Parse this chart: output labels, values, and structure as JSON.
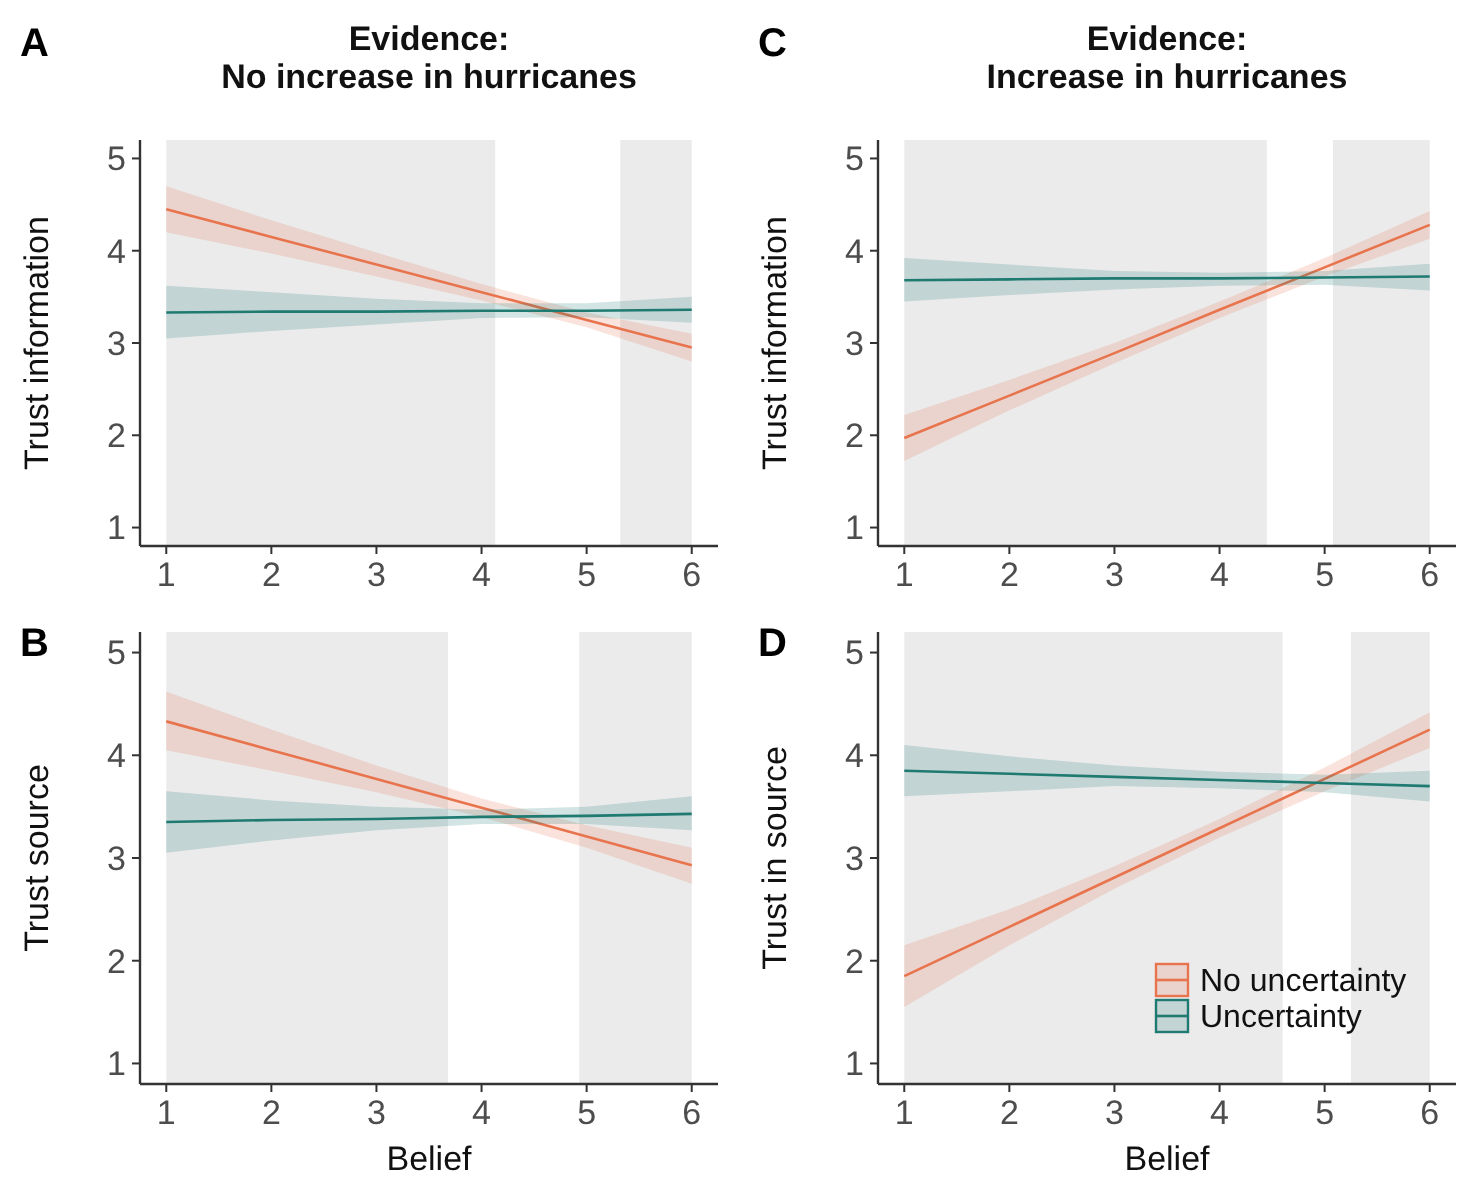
{
  "chart_data": [
    {
      "type": "line",
      "title": "Evidence:\nNo increase in hurricanes",
      "ylabel": "Trust information",
      "annotations": [
        "A"
      ],
      "x": [
        1,
        2,
        3,
        4,
        5,
        6
      ],
      "xlim": [
        0.75,
        6.25
      ],
      "ylim": [
        0.8,
        5.2
      ],
      "xticks": [
        1,
        2,
        3,
        4,
        5,
        6
      ],
      "yticks": [
        1,
        2,
        3,
        4,
        5
      ],
      "grid": false,
      "marker": "none",
      "line_style": "solid",
      "bands": [
        {
          "axis": "x",
          "from": 1,
          "to": 4.13,
          "color": "#ebebeb"
        },
        {
          "axis": "x",
          "from": 5.32,
          "to": 6,
          "color": "#ebebeb"
        }
      ],
      "series": [
        {
          "color": "#e8744e",
          "values": [
            4.45,
            4.15,
            3.85,
            3.55,
            3.25,
            2.95
          ],
          "lower": [
            4.2,
            3.97,
            3.72,
            3.46,
            3.17,
            2.8
          ],
          "upper": [
            4.7,
            4.33,
            3.98,
            3.64,
            3.33,
            3.1
          ]
        },
        {
          "color": "#1f7a72",
          "values": [
            3.33,
            3.34,
            3.34,
            3.35,
            3.35,
            3.36
          ],
          "lower": [
            3.05,
            3.13,
            3.2,
            3.27,
            3.28,
            3.22
          ],
          "upper": [
            3.62,
            3.55,
            3.48,
            3.43,
            3.43,
            3.5
          ]
        }
      ]
    },
    {
      "type": "line",
      "title": "Evidence:\nIncrease in hurricanes",
      "ylabel": "Trust information",
      "annotations": [
        "C"
      ],
      "x": [
        1,
        2,
        3,
        4,
        5,
        6
      ],
      "xlim": [
        0.75,
        6.25
      ],
      "ylim": [
        0.8,
        5.2
      ],
      "xticks": [
        1,
        2,
        3,
        4,
        5,
        6
      ],
      "yticks": [
        1,
        2,
        3,
        4,
        5
      ],
      "grid": false,
      "marker": "none",
      "line_style": "solid",
      "bands": [
        {
          "axis": "x",
          "from": 1,
          "to": 4.45,
          "color": "#ebebeb"
        },
        {
          "axis": "x",
          "from": 5.08,
          "to": 6,
          "color": "#ebebeb"
        }
      ],
      "series": [
        {
          "color": "#e8744e",
          "values": [
            1.97,
            2.43,
            2.89,
            3.36,
            3.82,
            4.28
          ],
          "lower": [
            1.72,
            2.27,
            2.78,
            3.27,
            3.72,
            4.13
          ],
          "upper": [
            2.22,
            2.6,
            3.0,
            3.45,
            3.92,
            4.43
          ]
        },
        {
          "color": "#1f7a72",
          "values": [
            3.68,
            3.69,
            3.7,
            3.7,
            3.71,
            3.72
          ],
          "lower": [
            3.45,
            3.52,
            3.58,
            3.62,
            3.63,
            3.57
          ],
          "upper": [
            3.92,
            3.85,
            3.78,
            3.76,
            3.78,
            3.86
          ]
        }
      ]
    },
    {
      "type": "line",
      "xlabel": "Belief",
      "ylabel": "Trust source",
      "annotations": [
        "B"
      ],
      "x": [
        1,
        2,
        3,
        4,
        5,
        6
      ],
      "xlim": [
        0.75,
        6.25
      ],
      "ylim": [
        0.8,
        5.2
      ],
      "xticks": [
        1,
        2,
        3,
        4,
        5,
        6
      ],
      "yticks": [
        1,
        2,
        3,
        4,
        5
      ],
      "grid": false,
      "marker": "none",
      "line_style": "solid",
      "bands": [
        {
          "axis": "x",
          "from": 1,
          "to": 3.68,
          "color": "#ebebeb"
        },
        {
          "axis": "x",
          "from": 4.93,
          "to": 6,
          "color": "#ebebeb"
        }
      ],
      "series": [
        {
          "color": "#e8744e",
          "values": [
            4.33,
            4.05,
            3.77,
            3.49,
            3.21,
            2.93
          ],
          "lower": [
            4.05,
            3.85,
            3.64,
            3.4,
            3.1,
            2.75
          ],
          "upper": [
            4.62,
            4.25,
            3.9,
            3.58,
            3.32,
            3.1
          ]
        },
        {
          "color": "#1f7a72",
          "values": [
            3.35,
            3.37,
            3.38,
            3.4,
            3.41,
            3.43
          ],
          "lower": [
            3.05,
            3.17,
            3.27,
            3.33,
            3.33,
            3.27
          ],
          "upper": [
            3.65,
            3.56,
            3.5,
            3.47,
            3.5,
            3.6
          ]
        }
      ]
    },
    {
      "type": "line",
      "xlabel": "Belief",
      "ylabel": "Trust in source",
      "annotations": [
        "D"
      ],
      "x": [
        1,
        2,
        3,
        4,
        5,
        6
      ],
      "xlim": [
        0.75,
        6.25
      ],
      "ylim": [
        0.8,
        5.2
      ],
      "xticks": [
        1,
        2,
        3,
        4,
        5,
        6
      ],
      "yticks": [
        1,
        2,
        3,
        4,
        5
      ],
      "grid": false,
      "marker": "none",
      "line_style": "solid",
      "legend": "bottom right",
      "bands": [
        {
          "axis": "x",
          "from": 1,
          "to": 4.6,
          "color": "#ebebeb"
        },
        {
          "axis": "x",
          "from": 5.25,
          "to": 6,
          "color": "#ebebeb"
        }
      ],
      "series": [
        {
          "name": "No uncertainty",
          "color": "#e8744e",
          "values": [
            1.85,
            2.33,
            2.81,
            3.29,
            3.77,
            4.25
          ],
          "lower": [
            1.55,
            2.15,
            2.7,
            3.2,
            3.65,
            4.07
          ],
          "upper": [
            2.15,
            2.5,
            2.92,
            3.38,
            3.88,
            4.42
          ]
        },
        {
          "name": "Uncertainty",
          "color": "#1f7a72",
          "values": [
            3.85,
            3.82,
            3.79,
            3.76,
            3.73,
            3.7
          ],
          "lower": [
            3.6,
            3.65,
            3.7,
            3.68,
            3.64,
            3.55
          ],
          "upper": [
            4.1,
            3.99,
            3.9,
            3.84,
            3.81,
            3.85
          ]
        }
      ]
    }
  ]
}
